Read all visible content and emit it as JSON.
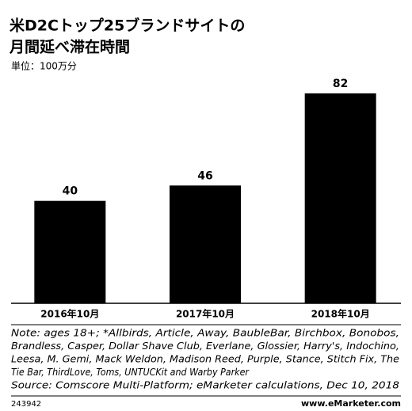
{
  "chart_data": {
    "type": "bar",
    "title": [
      "米D2Cトップ25ブランドサイトの",
      "月間延べ滞在時間"
    ],
    "subtitle": "単位：100万分",
    "categories": [
      "2016年10月",
      "2017年10月",
      "2018年10月"
    ],
    "values": [
      40,
      46,
      82
    ],
    "color": "#000000",
    "ylim": [
      0,
      90
    ],
    "notes": [
      "Note: ages 18+; *Allbirds, Article, Away, BaubleBar, Birchbox, Bonobos,",
      "Brandless, Casper, Dollar Shave Club, Everlane, Glossier, Harry's, Indochino,",
      "Leesa, M. Gemi, Mack Weldon, Madison Reed, Purple, Stance, Stitch Fix, The",
      "Tie Bar, ThirdLove, Toms, UNTUCKit and Warby Parker",
      "Source: Comscore Multi-Platform; eMarketer calculations, Dec 10, 2018"
    ],
    "chart_id": "243942",
    "site": "www.eMarketer.com"
  }
}
